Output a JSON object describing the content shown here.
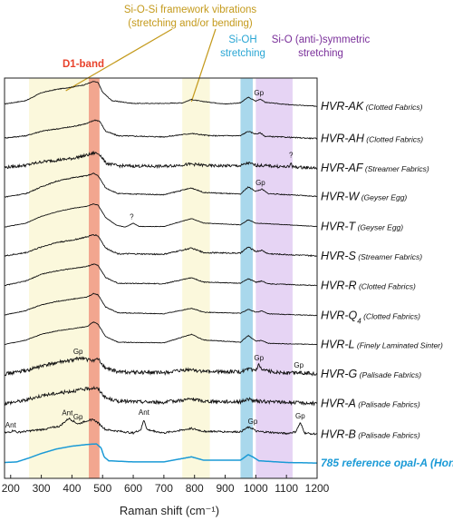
{
  "chart_data": {
    "type": "line",
    "xlabel": "Raman shift (cm⁻¹)",
    "xlim": [
      180,
      1200
    ],
    "xticks": [
      200,
      300,
      400,
      500,
      600,
      700,
      800,
      900,
      1000,
      1100,
      1200
    ],
    "tick_labels": [
      "200",
      "300",
      "400",
      "500",
      "600",
      "700",
      "800",
      "900",
      "1000",
      "1100",
      "1200"
    ],
    "bands": [
      {
        "name": "framework-left",
        "x0": 260,
        "x1": 455,
        "color": "#fbf8dc"
      },
      {
        "name": "framework-right",
        "x0": 760,
        "x1": 850,
        "color": "#fbf8dc"
      },
      {
        "name": "d1",
        "x0": 455,
        "x1": 490,
        "color": "#f2a68f"
      },
      {
        "name": "sioh",
        "x0": 950,
        "x1": 990,
        "color": "#a9d8ec"
      },
      {
        "name": "sio",
        "x0": 1000,
        "x1": 1120,
        "color": "#e6d4f4"
      }
    ],
    "band_labels": {
      "framework_line1": "Si-O-Si framework vibrations",
      "framework_line2": "(stretching and/or bending)",
      "framework_color": "#c49a1c",
      "d1": "D1-band",
      "d1_color": "#e8422c",
      "sioh_line1": "Si-OH",
      "sioh_line2": "stretching",
      "sioh_color": "#2aa6d4",
      "sio_line1": "Si-O (anti-)symmetric",
      "sio_line2": "stretching",
      "sio_color": "#7a2f9a"
    },
    "series": [
      {
        "name": "HVR-AK",
        "sub": "(Clotted Fabrics)",
        "noise": 0.6,
        "points": [
          [
            180,
            12
          ],
          [
            250,
            18
          ],
          [
            300,
            32
          ],
          [
            350,
            38
          ],
          [
            400,
            42
          ],
          [
            440,
            46
          ],
          [
            470,
            52
          ],
          [
            485,
            50
          ],
          [
            500,
            33
          ],
          [
            530,
            18
          ],
          [
            600,
            13
          ],
          [
            700,
            13
          ],
          [
            760,
            14
          ],
          [
            790,
            20
          ],
          [
            820,
            17
          ],
          [
            900,
            12
          ],
          [
            950,
            14
          ],
          [
            975,
            24
          ],
          [
            1000,
            17
          ],
          [
            1015,
            21
          ],
          [
            1030,
            15
          ],
          [
            1100,
            11
          ],
          [
            1200,
            8
          ]
        ]
      },
      {
        "name": "HVR-AH",
        "sub": "(Clotted Fabrics)",
        "noise": 0.9,
        "points": [
          [
            180,
            4
          ],
          [
            250,
            8
          ],
          [
            300,
            16
          ],
          [
            400,
            24
          ],
          [
            450,
            30
          ],
          [
            475,
            36
          ],
          [
            490,
            34
          ],
          [
            510,
            16
          ],
          [
            550,
            8
          ],
          [
            700,
            6
          ],
          [
            790,
            12
          ],
          [
            850,
            8
          ],
          [
            950,
            8
          ],
          [
            975,
            16
          ],
          [
            1000,
            11
          ],
          [
            1015,
            13
          ],
          [
            1030,
            7
          ],
          [
            1200,
            3
          ]
        ]
      },
      {
        "name": "HVR-AF",
        "sub": "(Streamer Fabrics)",
        "noise": 2.6,
        "points": [
          [
            180,
            4
          ],
          [
            250,
            8
          ],
          [
            300,
            14
          ],
          [
            400,
            20
          ],
          [
            450,
            26
          ],
          [
            475,
            30
          ],
          [
            490,
            28
          ],
          [
            510,
            12
          ],
          [
            550,
            7
          ],
          [
            700,
            6
          ],
          [
            790,
            10
          ],
          [
            850,
            7
          ],
          [
            950,
            7
          ],
          [
            975,
            12
          ],
          [
            1000,
            8
          ],
          [
            1100,
            5
          ],
          [
            1110,
            5
          ],
          [
            1115,
            14
          ],
          [
            1120,
            5
          ],
          [
            1200,
            3
          ]
        ]
      },
      {
        "name": "HVR-W",
        "sub": "(Geyser Egg)",
        "noise": 0.8,
        "points": [
          [
            180,
            4
          ],
          [
            250,
            10
          ],
          [
            300,
            22
          ],
          [
            350,
            32
          ],
          [
            400,
            38
          ],
          [
            450,
            42
          ],
          [
            470,
            46
          ],
          [
            485,
            42
          ],
          [
            510,
            20
          ],
          [
            550,
            10
          ],
          [
            700,
            8
          ],
          [
            790,
            20
          ],
          [
            830,
            12
          ],
          [
            950,
            9
          ],
          [
            975,
            22
          ],
          [
            1000,
            14
          ],
          [
            1020,
            18
          ],
          [
            1040,
            10
          ],
          [
            1200,
            5
          ]
        ]
      },
      {
        "name": "HVR-T",
        "sub": "(Geyser Egg)",
        "noise": 0.4,
        "points": [
          [
            180,
            3
          ],
          [
            250,
            10
          ],
          [
            300,
            22
          ],
          [
            350,
            30
          ],
          [
            400,
            36
          ],
          [
            450,
            40
          ],
          [
            470,
            44
          ],
          [
            485,
            42
          ],
          [
            510,
            20
          ],
          [
            545,
            6
          ],
          [
            575,
            3
          ],
          [
            600,
            10
          ],
          [
            620,
            4
          ],
          [
            700,
            4
          ],
          [
            790,
            18
          ],
          [
            830,
            10
          ],
          [
            950,
            7
          ],
          [
            975,
            16
          ],
          [
            1000,
            10
          ],
          [
            1200,
            4
          ]
        ]
      },
      {
        "name": "HVR-S",
        "sub": "(Streamer Fabrics)",
        "noise": 1.1,
        "points": [
          [
            180,
            4
          ],
          [
            250,
            10
          ],
          [
            300,
            20
          ],
          [
            350,
            28
          ],
          [
            400,
            32
          ],
          [
            450,
            38
          ],
          [
            470,
            42
          ],
          [
            485,
            40
          ],
          [
            510,
            18
          ],
          [
            550,
            8
          ],
          [
            700,
            7
          ],
          [
            790,
            18
          ],
          [
            830,
            10
          ],
          [
            950,
            9
          ],
          [
            975,
            20
          ],
          [
            1000,
            12
          ],
          [
            1020,
            14
          ],
          [
            1040,
            8
          ],
          [
            1200,
            4
          ]
        ]
      },
      {
        "name": "HVR-R",
        "sub": "(Clotted Fabrics)",
        "noise": 0.7,
        "points": [
          [
            180,
            4
          ],
          [
            250,
            12
          ],
          [
            300,
            24
          ],
          [
            350,
            30
          ],
          [
            400,
            34
          ],
          [
            450,
            38
          ],
          [
            470,
            42
          ],
          [
            485,
            40
          ],
          [
            510,
            18
          ],
          [
            550,
            8
          ],
          [
            700,
            7
          ],
          [
            790,
            18
          ],
          [
            830,
            10
          ],
          [
            950,
            8
          ],
          [
            975,
            16
          ],
          [
            1000,
            10
          ],
          [
            1020,
            12
          ],
          [
            1040,
            7
          ],
          [
            1200,
            4
          ]
        ]
      },
      {
        "name": "HVR-Q",
        "sub": "(Clotted Fabrics)",
        "subscript": "4",
        "noise": 0.6,
        "points": [
          [
            180,
            4
          ],
          [
            250,
            12
          ],
          [
            300,
            22
          ],
          [
            350,
            28
          ],
          [
            400,
            32
          ],
          [
            450,
            36
          ],
          [
            470,
            42
          ],
          [
            485,
            40
          ],
          [
            510,
            18
          ],
          [
            550,
            8
          ],
          [
            700,
            6
          ],
          [
            790,
            16
          ],
          [
            830,
            9
          ],
          [
            950,
            7
          ],
          [
            975,
            14
          ],
          [
            1000,
            9
          ],
          [
            1020,
            11
          ],
          [
            1040,
            6
          ],
          [
            1200,
            3
          ]
        ]
      },
      {
        "name": "HVR-L",
        "sub": "(Finely Laminated Sinter)",
        "noise": 0.5,
        "points": [
          [
            180,
            4
          ],
          [
            250,
            12
          ],
          [
            300,
            22
          ],
          [
            350,
            28
          ],
          [
            400,
            32
          ],
          [
            450,
            36
          ],
          [
            470,
            44
          ],
          [
            485,
            40
          ],
          [
            510,
            18
          ],
          [
            550,
            8
          ],
          [
            700,
            7
          ],
          [
            790,
            22
          ],
          [
            830,
            12
          ],
          [
            950,
            8
          ],
          [
            975,
            20
          ],
          [
            1000,
            10
          ],
          [
            1020,
            11
          ],
          [
            1040,
            6
          ],
          [
            1200,
            4
          ]
        ]
      },
      {
        "name": "HVR-G",
        "sub": "(Palisade Fabrics)",
        "noise": 3.2,
        "points": [
          [
            180,
            4
          ],
          [
            250,
            10
          ],
          [
            300,
            18
          ],
          [
            350,
            24
          ],
          [
            400,
            28
          ],
          [
            430,
            33
          ],
          [
            460,
            28
          ],
          [
            485,
            30
          ],
          [
            510,
            14
          ],
          [
            550,
            8
          ],
          [
            700,
            6
          ],
          [
            790,
            12
          ],
          [
            830,
            8
          ],
          [
            950,
            8
          ],
          [
            975,
            12
          ],
          [
            1000,
            10
          ],
          [
            1010,
            20
          ],
          [
            1020,
            10
          ],
          [
            1100,
            6
          ],
          [
            1140,
            7
          ],
          [
            1200,
            4
          ]
        ]
      },
      {
        "name": "HVR-A",
        "sub": "(Palisade Fabrics)",
        "noise": 3.0,
        "points": [
          [
            180,
            4
          ],
          [
            250,
            10
          ],
          [
            300,
            18
          ],
          [
            350,
            22
          ],
          [
            400,
            26
          ],
          [
            450,
            30
          ],
          [
            470,
            32
          ],
          [
            485,
            30
          ],
          [
            510,
            14
          ],
          [
            550,
            8
          ],
          [
            700,
            6
          ],
          [
            790,
            12
          ],
          [
            830,
            8
          ],
          [
            950,
            7
          ],
          [
            975,
            12
          ],
          [
            1000,
            8
          ],
          [
            1200,
            4
          ]
        ]
      },
      {
        "name": "HVR-B",
        "sub": "(Palisade Fabrics)",
        "noise": 1.6,
        "points": [
          [
            180,
            4
          ],
          [
            200,
            6
          ],
          [
            210,
            9
          ],
          [
            220,
            5
          ],
          [
            300,
            10
          ],
          [
            360,
            16
          ],
          [
            390,
            30
          ],
          [
            420,
            20
          ],
          [
            450,
            26
          ],
          [
            470,
            28
          ],
          [
            485,
            22
          ],
          [
            510,
            10
          ],
          [
            600,
            4
          ],
          [
            625,
            10
          ],
          [
            635,
            28
          ],
          [
            645,
            10
          ],
          [
            700,
            4
          ],
          [
            790,
            12
          ],
          [
            830,
            7
          ],
          [
            950,
            6
          ],
          [
            975,
            14
          ],
          [
            990,
            12
          ],
          [
            1000,
            7
          ],
          [
            1100,
            3
          ],
          [
            1130,
            6
          ],
          [
            1145,
            22
          ],
          [
            1160,
            4
          ],
          [
            1200,
            2
          ]
        ]
      },
      {
        "name": "785",
        "sub": "reference opal-A (Honduras)",
        "noise": 0,
        "color": "#1a9ad6",
        "points": [
          [
            180,
            4
          ],
          [
            220,
            5
          ],
          [
            260,
            12
          ],
          [
            300,
            20
          ],
          [
            350,
            28
          ],
          [
            400,
            33
          ],
          [
            450,
            36
          ],
          [
            480,
            37
          ],
          [
            495,
            30
          ],
          [
            505,
            14
          ],
          [
            520,
            7
          ],
          [
            600,
            5
          ],
          [
            700,
            5
          ],
          [
            790,
            14
          ],
          [
            830,
            8
          ],
          [
            950,
            8
          ],
          [
            975,
            18
          ],
          [
            990,
            14
          ],
          [
            1010,
            7
          ],
          [
            1100,
            4
          ],
          [
            1200,
            3
          ]
        ]
      }
    ],
    "peak_annotations": [
      {
        "series": 0,
        "x": 1010,
        "text": "Gp"
      },
      {
        "series": 2,
        "x": 1115,
        "text": "?",
        "color": "#7a2f9a"
      },
      {
        "series": 3,
        "x": 1015,
        "text": "Gp"
      },
      {
        "series": 4,
        "x": 595,
        "text": "?"
      },
      {
        "series": 9,
        "x": 420,
        "text": "Gp"
      },
      {
        "series": 9,
        "x": 1010,
        "text": "Gp"
      },
      {
        "series": 9,
        "x": 1140,
        "text": "Gp"
      },
      {
        "series": 11,
        "x": 200,
        "text": "Ant"
      },
      {
        "series": 11,
        "x": 385,
        "text": "Ant"
      },
      {
        "series": 11,
        "x": 420,
        "text": "Gp"
      },
      {
        "series": 11,
        "x": 635,
        "text": "Ant"
      },
      {
        "series": 11,
        "x": 990,
        "text": "Gp"
      },
      {
        "series": 11,
        "x": 1145,
        "text": "Gp"
      }
    ]
  }
}
